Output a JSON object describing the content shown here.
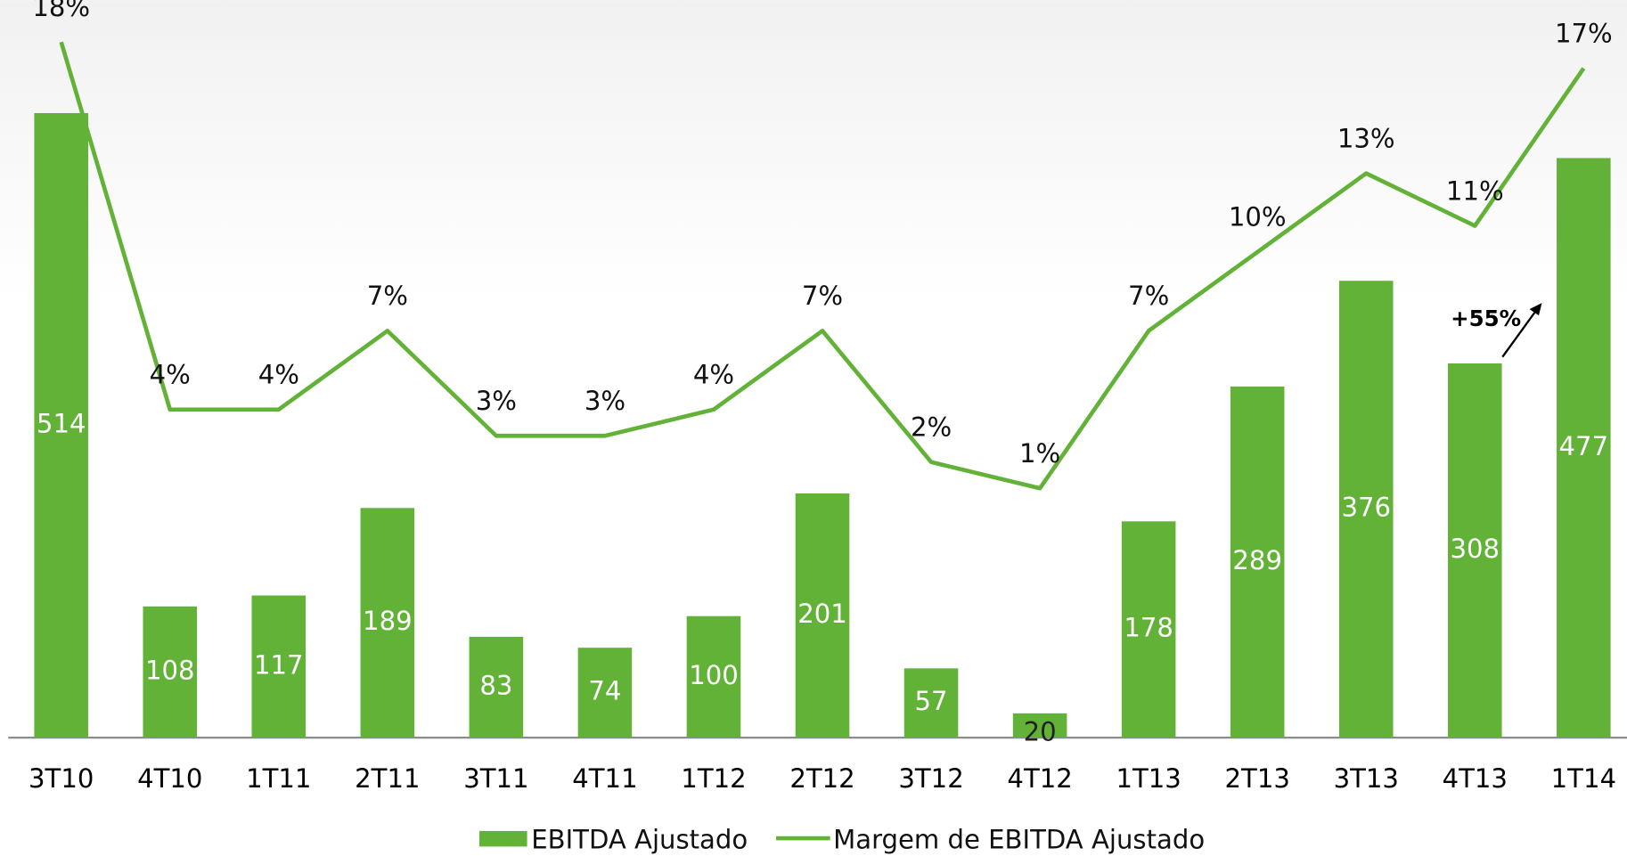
{
  "chart_data": {
    "type": "bar",
    "categories": [
      "3T10",
      "4T10",
      "1T11",
      "2T11",
      "3T11",
      "4T11",
      "1T12",
      "2T12",
      "3T12",
      "4T12",
      "1T13",
      "2T13",
      "3T13",
      "4T13",
      "1T14"
    ],
    "ylim": [
      0,
      607
    ],
    "y2lim": [
      -8.5,
      19.6
    ],
    "series": [
      {
        "name": "EBITDA Ajustado",
        "type": "bar",
        "color": "#62b238",
        "values": [
          514,
          108,
          117,
          189,
          83,
          74,
          100,
          201,
          57,
          20,
          178,
          289,
          376,
          308,
          477
        ]
      },
      {
        "name": "Margem de EBITDA Ajustado",
        "type": "line",
        "axis": "y2",
        "color": "#62b238",
        "values": [
          18,
          4,
          4,
          7,
          3,
          3,
          4,
          7,
          2,
          1,
          7,
          10,
          13,
          11,
          17
        ],
        "value_labels": [
          "18%",
          "4%",
          "4%",
          "7%",
          "3%",
          "3%",
          "4%",
          "7%",
          "2%",
          "1%",
          "7%",
          "10%",
          "13%",
          "11%",
          "17%"
        ]
      }
    ],
    "annotation": "+55%",
    "legend": "bottom"
  }
}
